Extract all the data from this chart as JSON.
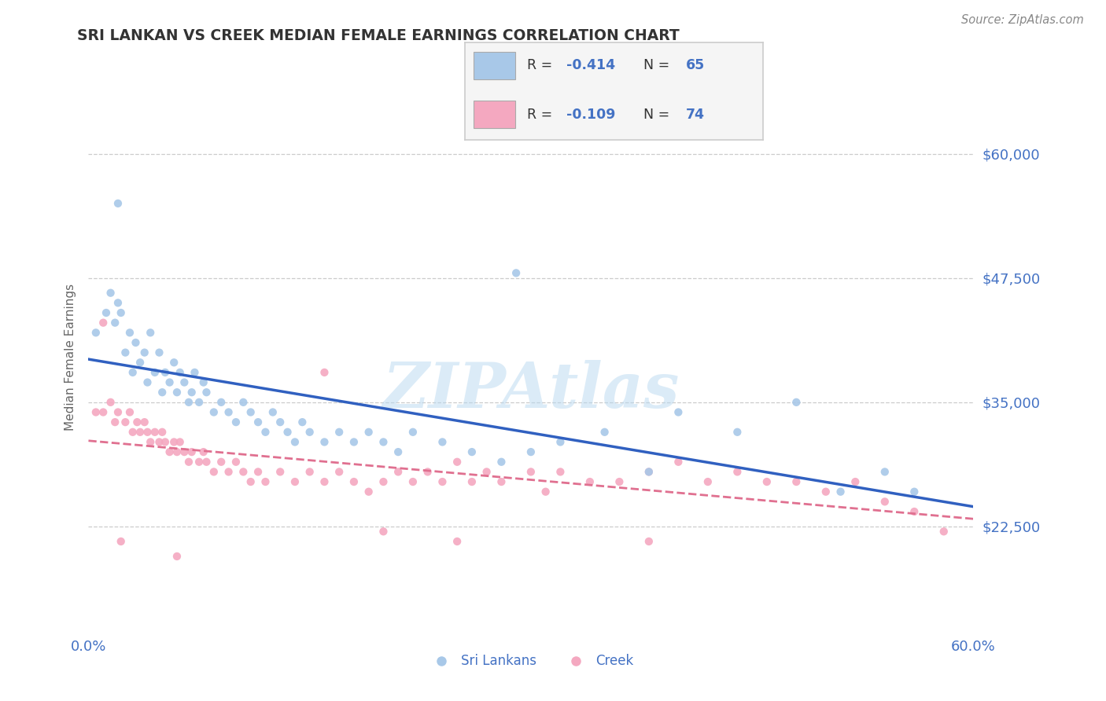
{
  "title": "SRI LANKAN VS CREEK MEDIAN FEMALE EARNINGS CORRELATION CHART",
  "source": "Source: ZipAtlas.com",
  "ylabel": "Median Female Earnings",
  "xlim": [
    0.0,
    0.6
  ],
  "ylim": [
    12000,
    67000
  ],
  "xticks": [
    0.0,
    0.1,
    0.2,
    0.3,
    0.4,
    0.5,
    0.6
  ],
  "xticklabels": [
    "0.0%",
    "",
    "",
    "",
    "",
    "",
    "60.0%"
  ],
  "yticks": [
    22500,
    35000,
    47500,
    60000
  ],
  "yticklabels": [
    "$22,500",
    "$35,000",
    "$47,500",
    "$60,000"
  ],
  "background_color": "#ffffff",
  "sri_lankan_color": "#a8c8e8",
  "creek_color": "#f4a8c0",
  "sri_lankan_line_color": "#3060c0",
  "creek_line_color": "#e07090",
  "legend_label1": "Sri Lankans",
  "legend_label2": "Creek",
  "watermark": "ZIPAtlas",
  "sri_lankan_x": [
    0.005,
    0.012,
    0.015,
    0.018,
    0.02,
    0.022,
    0.025,
    0.028,
    0.03,
    0.032,
    0.035,
    0.038,
    0.04,
    0.042,
    0.045,
    0.048,
    0.05,
    0.052,
    0.055,
    0.058,
    0.06,
    0.062,
    0.065,
    0.068,
    0.07,
    0.072,
    0.075,
    0.078,
    0.08,
    0.085,
    0.09,
    0.095,
    0.1,
    0.105,
    0.11,
    0.115,
    0.12,
    0.125,
    0.13,
    0.135,
    0.14,
    0.145,
    0.15,
    0.16,
    0.17,
    0.18,
    0.19,
    0.2,
    0.21,
    0.22,
    0.24,
    0.26,
    0.28,
    0.3,
    0.32,
    0.35,
    0.38,
    0.4,
    0.44,
    0.48,
    0.51,
    0.54,
    0.56,
    0.02,
    0.29
  ],
  "sri_lankan_y": [
    42000,
    44000,
    46000,
    43000,
    45000,
    44000,
    40000,
    42000,
    38000,
    41000,
    39000,
    40000,
    37000,
    42000,
    38000,
    40000,
    36000,
    38000,
    37000,
    39000,
    36000,
    38000,
    37000,
    35000,
    36000,
    38000,
    35000,
    37000,
    36000,
    34000,
    35000,
    34000,
    33000,
    35000,
    34000,
    33000,
    32000,
    34000,
    33000,
    32000,
    31000,
    33000,
    32000,
    31000,
    32000,
    31000,
    32000,
    31000,
    30000,
    32000,
    31000,
    30000,
    29000,
    30000,
    31000,
    32000,
    28000,
    34000,
    32000,
    35000,
    26000,
    28000,
    26000,
    55000,
    48000
  ],
  "creek_x": [
    0.005,
    0.01,
    0.015,
    0.018,
    0.02,
    0.025,
    0.028,
    0.03,
    0.033,
    0.035,
    0.038,
    0.04,
    0.042,
    0.045,
    0.048,
    0.05,
    0.052,
    0.055,
    0.058,
    0.06,
    0.062,
    0.065,
    0.068,
    0.07,
    0.075,
    0.078,
    0.08,
    0.085,
    0.09,
    0.095,
    0.1,
    0.105,
    0.11,
    0.115,
    0.12,
    0.13,
    0.14,
    0.15,
    0.16,
    0.17,
    0.18,
    0.19,
    0.2,
    0.21,
    0.22,
    0.23,
    0.24,
    0.25,
    0.26,
    0.27,
    0.28,
    0.3,
    0.31,
    0.32,
    0.34,
    0.36,
    0.38,
    0.4,
    0.42,
    0.44,
    0.46,
    0.48,
    0.5,
    0.52,
    0.54,
    0.56,
    0.58,
    0.01,
    0.022,
    0.06,
    0.16,
    0.2,
    0.25,
    0.38
  ],
  "creek_y": [
    34000,
    34000,
    35000,
    33000,
    34000,
    33000,
    34000,
    32000,
    33000,
    32000,
    33000,
    32000,
    31000,
    32000,
    31000,
    32000,
    31000,
    30000,
    31000,
    30000,
    31000,
    30000,
    29000,
    30000,
    29000,
    30000,
    29000,
    28000,
    29000,
    28000,
    29000,
    28000,
    27000,
    28000,
    27000,
    28000,
    27000,
    28000,
    27000,
    28000,
    27000,
    26000,
    27000,
    28000,
    27000,
    28000,
    27000,
    29000,
    27000,
    28000,
    27000,
    28000,
    26000,
    28000,
    27000,
    27000,
    28000,
    29000,
    27000,
    28000,
    27000,
    27000,
    26000,
    27000,
    25000,
    24000,
    22000,
    43000,
    21000,
    19500,
    38000,
    22000,
    21000,
    21000
  ]
}
